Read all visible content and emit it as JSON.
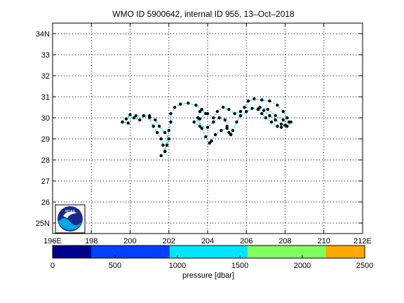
{
  "chart_data": {
    "type": "scatter",
    "title": "WMO ID 5900642, internal ID 955, 13–Oct–2018",
    "xlim": [
      196,
      212
    ],
    "ylim": [
      24.5,
      34.5
    ],
    "x_ticks": [
      {
        "value": 196,
        "label": "196E"
      },
      {
        "value": 198,
        "label": "198"
      },
      {
        "value": 200,
        "label": "200"
      },
      {
        "value": 202,
        "label": "202"
      },
      {
        "value": 204,
        "label": "204"
      },
      {
        "value": 206,
        "label": "206"
      },
      {
        "value": 208,
        "label": "208"
      },
      {
        "value": 210,
        "label": "210"
      },
      {
        "value": 212,
        "label": "212E"
      }
    ],
    "y_ticks": [
      {
        "value": 25,
        "label": "25N"
      },
      {
        "value": 26,
        "label": "26"
      },
      {
        "value": 27,
        "label": "27"
      },
      {
        "value": 28,
        "label": "28"
      },
      {
        "value": 29,
        "label": "29"
      },
      {
        "value": 30,
        "label": "30"
      },
      {
        "value": 31,
        "label": "31"
      },
      {
        "value": 32,
        "label": "32"
      },
      {
        "value": 33,
        "label": "33"
      },
      {
        "value": 34,
        "label": "34N"
      }
    ],
    "grid": true,
    "track_color": "#00e0ff",
    "marker_color": "#000000",
    "series": [
      {
        "values": [
          [
            201.6,
            28.2
          ],
          [
            201.8,
            28.4
          ],
          [
            201.9,
            28.7
          ],
          [
            202.0,
            29.0
          ],
          [
            201.8,
            29.3
          ],
          [
            201.5,
            29.6
          ],
          [
            201.3,
            29.9
          ],
          [
            201.0,
            30.1
          ],
          [
            200.7,
            30.1
          ],
          [
            200.5,
            29.9
          ],
          [
            200.2,
            30.0
          ],
          [
            200.0,
            30.15
          ],
          [
            199.8,
            29.95
          ],
          [
            199.6,
            29.8
          ],
          [
            199.9,
            29.75
          ],
          [
            200.3,
            30.1
          ],
          [
            200.7,
            30.1
          ],
          [
            201.0,
            30.0
          ],
          [
            201.2,
            29.6
          ],
          [
            201.4,
            29.3
          ],
          [
            201.6,
            29.0
          ],
          [
            201.7,
            28.7
          ],
          [
            201.8,
            28.4
          ],
          [
            202.0,
            29.4
          ],
          [
            202.1,
            29.8
          ],
          [
            202.1,
            30.2
          ],
          [
            202.3,
            30.5
          ],
          [
            202.6,
            30.65
          ],
          [
            203.0,
            30.7
          ],
          [
            203.4,
            30.6
          ],
          [
            203.7,
            30.4
          ],
          [
            203.9,
            30.2
          ],
          [
            203.6,
            29.95
          ],
          [
            203.3,
            29.8
          ],
          [
            203.6,
            29.6
          ],
          [
            204.0,
            29.55
          ],
          [
            204.3,
            29.8
          ],
          [
            204.6,
            30.0
          ],
          [
            204.9,
            29.9
          ],
          [
            205.0,
            29.6
          ],
          [
            205.1,
            29.3
          ],
          [
            205.2,
            29.2
          ],
          [
            205.0,
            29.5
          ],
          [
            204.7,
            29.4
          ],
          [
            204.4,
            29.2
          ],
          [
            204.2,
            28.9
          ],
          [
            204.1,
            28.8
          ],
          [
            203.9,
            29.1
          ],
          [
            203.7,
            29.5
          ],
          [
            203.5,
            30.0
          ],
          [
            203.6,
            30.3
          ],
          [
            204.0,
            30.2
          ],
          [
            204.3,
            30.0
          ],
          [
            204.5,
            30.3
          ],
          [
            204.8,
            30.5
          ],
          [
            205.1,
            30.4
          ],
          [
            205.4,
            30.2
          ],
          [
            205.7,
            30.3
          ],
          [
            205.9,
            30.5
          ],
          [
            206.1,
            30.8
          ],
          [
            206.4,
            30.9
          ],
          [
            206.8,
            30.85
          ],
          [
            207.2,
            30.8
          ],
          [
            207.6,
            30.6
          ],
          [
            207.9,
            30.3
          ],
          [
            208.1,
            30.0
          ],
          [
            208.3,
            29.8
          ],
          [
            208.1,
            29.6
          ],
          [
            207.8,
            29.7
          ],
          [
            207.5,
            29.9
          ],
          [
            207.2,
            30.1
          ],
          [
            206.9,
            30.35
          ],
          [
            206.6,
            30.4
          ],
          [
            206.8,
            30.2
          ],
          [
            207.0,
            30.0
          ],
          [
            207.3,
            29.8
          ],
          [
            207.6,
            29.6
          ],
          [
            207.8,
            29.55
          ],
          [
            208.0,
            29.65
          ],
          [
            208.2,
            29.8
          ],
          [
            207.9,
            29.9
          ],
          [
            207.5,
            30.1
          ],
          [
            207.1,
            30.4
          ],
          [
            206.7,
            30.5
          ],
          [
            206.3,
            30.45
          ],
          [
            206.0,
            30.3
          ],
          [
            205.7,
            30.1
          ],
          [
            205.5,
            29.8
          ],
          [
            205.3,
            29.4
          ],
          [
            205.2,
            29.2
          ]
        ]
      }
    ],
    "colorbar": {
      "label": "pressure [dbar]",
      "range": [
        0,
        2500
      ],
      "tick_values": [
        0,
        500,
        1000,
        1500,
        2000,
        2500
      ],
      "bins": [
        {
          "from": 0,
          "to": 312.5,
          "color": "#00008f"
        },
        {
          "from": 312.5,
          "to": 937.5,
          "color": "#0040ff"
        },
        {
          "from": 937.5,
          "to": 1562.5,
          "color": "#00e5ff"
        },
        {
          "from": 1562.5,
          "to": 2187.5,
          "color": "#80ff60"
        },
        {
          "from": 2187.5,
          "to": 2500,
          "color": "#ffaa00"
        }
      ]
    }
  },
  "logo": {
    "text": "NOAA",
    "colors": {
      "outer": "#1a2a8c",
      "wave": "#00a7e1",
      "bird": "#ffffff"
    }
  }
}
